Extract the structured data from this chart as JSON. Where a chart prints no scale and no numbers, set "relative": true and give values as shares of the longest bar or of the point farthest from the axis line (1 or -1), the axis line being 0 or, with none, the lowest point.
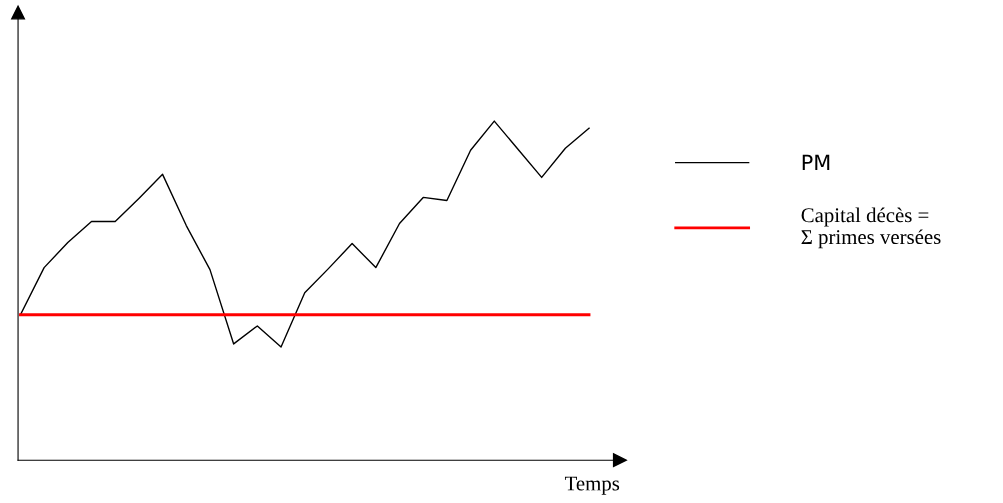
{
  "chart_data": {
    "type": "line",
    "relative": true,
    "xlabel": "Temps",
    "categories": [
      null,
      null,
      null,
      null,
      null,
      null,
      null,
      null,
      null,
      null,
      null,
      null,
      null,
      null,
      null,
      null,
      null,
      null,
      null,
      null,
      null,
      null,
      null,
      null,
      null
    ],
    "series": [
      {
        "name": "PM",
        "color": "#000000",
        "values": [
          0.429,
          0.568,
          0.642,
          0.704,
          0.704,
          0.772,
          0.843,
          0.692,
          0.562,
          0.343,
          0.396,
          0.334,
          0.494,
          0.565,
          0.639,
          0.568,
          0.698,
          0.775,
          0.766,
          0.914,
          1,
          0.917,
          0.834,
          0.92,
          0.979
        ]
      },
      {
        "name": "Capital décès =\nΣ primes versées",
        "color": "#ff0000",
        "values": [
          0.429,
          0.429,
          0.429,
          0.429,
          0.429,
          0.429,
          0.429,
          0.429,
          0.429,
          0.429,
          0.429,
          0.429,
          0.429,
          0.429,
          0.429,
          0.429,
          0.429,
          0.429,
          0.429,
          0.429,
          0.429,
          0.429,
          0.429,
          0.429,
          0.429
        ]
      }
    ],
    "legend": "right",
    "marker": "none",
    "line_style": "solid"
  }
}
